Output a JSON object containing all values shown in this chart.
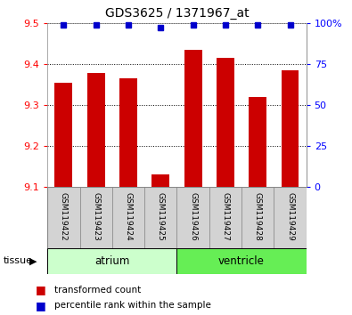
{
  "title": "GDS3625 / 1371967_at",
  "samples": [
    "GSM119422",
    "GSM119423",
    "GSM119424",
    "GSM119425",
    "GSM119426",
    "GSM119427",
    "GSM119428",
    "GSM119429"
  ],
  "transformed_counts": [
    9.355,
    9.378,
    9.365,
    9.13,
    9.435,
    9.415,
    9.32,
    9.385
  ],
  "percentile_ranks": [
    99,
    99,
    99,
    97,
    99,
    99,
    99,
    99
  ],
  "ylim_left": [
    9.1,
    9.5
  ],
  "yticks_left": [
    9.1,
    9.2,
    9.3,
    9.4,
    9.5
  ],
  "ylim_right": [
    0,
    100
  ],
  "yticks_right": [
    0,
    25,
    50,
    75,
    100
  ],
  "yticklabels_right": [
    "0",
    "25",
    "50",
    "75",
    "100%"
  ],
  "bar_color": "#cc0000",
  "dot_color": "#0000cc",
  "bar_bottom": 9.1,
  "groups": [
    {
      "label": "atrium",
      "start": 0,
      "end": 4,
      "color": "#ccffcc"
    },
    {
      "label": "ventricle",
      "start": 4,
      "end": 8,
      "color": "#66ee55"
    }
  ],
  "tissue_label": "tissue",
  "legend_items": [
    {
      "color": "#cc0000",
      "label": "transformed count"
    },
    {
      "color": "#0000cc",
      "label": "percentile rank within the sample"
    }
  ],
  "grid_color": "black",
  "background_color": "#ffffff",
  "bar_width": 0.55
}
